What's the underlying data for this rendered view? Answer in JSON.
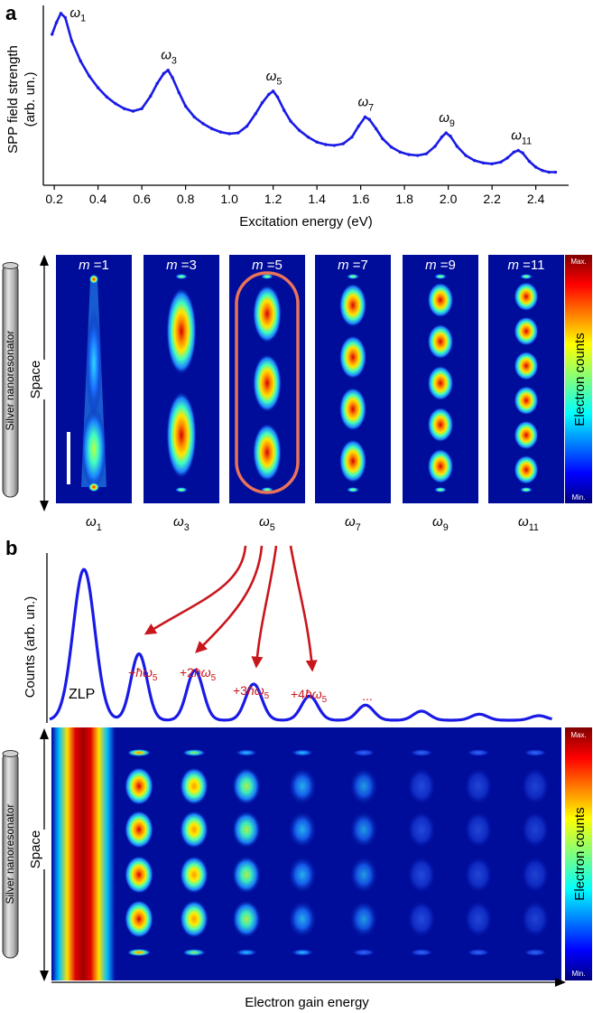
{
  "panel_a_label": "a",
  "panel_b_label": "b",
  "chart_data": [
    {
      "type": "line",
      "ylabel_line1": "SPP field strength",
      "ylabel_line2": "(arb. un.)",
      "xlabel": "Excitation energy (eV)",
      "xlim": [
        0.15,
        2.55
      ],
      "xticks": [
        "0.2",
        "0.4",
        "0.6",
        "0.8",
        "1.0",
        "1.2",
        "1.4",
        "1.6",
        "1.8",
        "2.0",
        "2.2",
        "2.4"
      ],
      "color": "#1a1ae6",
      "x": [
        0.19,
        0.21,
        0.23,
        0.25,
        0.28,
        0.32,
        0.36,
        0.4,
        0.44,
        0.48,
        0.52,
        0.56,
        0.6,
        0.64,
        0.67,
        0.7,
        0.72,
        0.74,
        0.77,
        0.8,
        0.84,
        0.88,
        0.92,
        0.96,
        1.0,
        1.04,
        1.08,
        1.12,
        1.15,
        1.18,
        1.2,
        1.22,
        1.25,
        1.28,
        1.32,
        1.36,
        1.4,
        1.44,
        1.48,
        1.52,
        1.56,
        1.59,
        1.62,
        1.64,
        1.67,
        1.7,
        1.74,
        1.78,
        1.82,
        1.86,
        1.9,
        1.94,
        1.97,
        1.99,
        2.01,
        2.04,
        2.08,
        2.12,
        2.16,
        2.2,
        2.24,
        2.27,
        2.3,
        2.32,
        2.34,
        2.37,
        2.4,
        2.43,
        2.46,
        2.49
      ],
      "y": [
        0.86,
        0.93,
        0.985,
        0.96,
        0.82,
        0.7,
        0.61,
        0.54,
        0.485,
        0.445,
        0.415,
        0.4,
        0.415,
        0.49,
        0.565,
        0.625,
        0.645,
        0.6,
        0.51,
        0.43,
        0.365,
        0.325,
        0.295,
        0.275,
        0.265,
        0.27,
        0.31,
        0.385,
        0.45,
        0.5,
        0.52,
        0.485,
        0.405,
        0.34,
        0.285,
        0.245,
        0.215,
        0.2,
        0.195,
        0.205,
        0.245,
        0.31,
        0.365,
        0.35,
        0.295,
        0.235,
        0.185,
        0.155,
        0.14,
        0.135,
        0.145,
        0.19,
        0.245,
        0.27,
        0.25,
        0.19,
        0.135,
        0.105,
        0.09,
        0.085,
        0.095,
        0.12,
        0.155,
        0.165,
        0.15,
        0.1,
        0.065,
        0.045,
        0.035,
        0.035
      ],
      "peaks": [
        {
          "base": "ω",
          "sub": "1",
          "x": 0.23,
          "y": 0.985
        },
        {
          "base": "ω",
          "sub": "3",
          "x": 0.72,
          "y": 0.645
        },
        {
          "base": "ω",
          "sub": "5",
          "x": 1.2,
          "y": 0.52
        },
        {
          "base": "ω",
          "sub": "7",
          "x": 1.62,
          "y": 0.365
        },
        {
          "base": "ω",
          "sub": "9",
          "x": 1.99,
          "y": 0.27
        },
        {
          "base": "ω",
          "sub": "11",
          "x": 2.32,
          "y": 0.165
        }
      ]
    },
    {
      "type": "heatmap",
      "space_label": "Space",
      "nanoresonator_label": "Silver nanoresonator",
      "colorbar_label": "Electron counts",
      "colorbar_max": "Max.",
      "colorbar_min": "Min.",
      "panels": [
        {
          "m_label": "m",
          "m_value": "=1",
          "freq_base": "ω",
          "freq_sub": "1",
          "order": 1
        },
        {
          "m_label": "m",
          "m_value": "=3",
          "freq_base": "ω",
          "freq_sub": "3",
          "order": 3
        },
        {
          "m_label": "m",
          "m_value": "=5",
          "freq_base": "ω",
          "freq_sub": "5",
          "order": 5,
          "highlighted": true
        },
        {
          "m_label": "m",
          "m_value": "=7",
          "freq_base": "ω",
          "freq_sub": "7",
          "order": 7
        },
        {
          "m_label": "m",
          "m_value": "=9",
          "freq_base": "ω",
          "freq_sub": "9",
          "order": 9
        },
        {
          "m_label": "m",
          "m_value": "=11",
          "freq_base": "ω",
          "freq_sub": "11",
          "order": 11
        }
      ]
    },
    {
      "type": "line",
      "ylabel": "Counts (arb. un.)",
      "color": "#1a1ae6",
      "zlp_label": "ZLP",
      "gain_peaks": [
        {
          "prefix": "+",
          "n": "",
          "hbar": "ħ",
          "base": "ω",
          "sub": "5",
          "height": 0.44
        },
        {
          "prefix": "+",
          "n": "2",
          "hbar": "ħ",
          "base": "ω",
          "sub": "5",
          "height": 0.33
        },
        {
          "prefix": "+",
          "n": "3",
          "hbar": "ħ",
          "base": "ω",
          "sub": "5",
          "height": 0.24
        },
        {
          "prefix": "+",
          "n": "4",
          "hbar": "ħ",
          "base": "ω",
          "sub": "5",
          "height": 0.16
        }
      ],
      "ellipsis": "...",
      "peak_heights": [
        1.0,
        0.44,
        0.33,
        0.24,
        0.16,
        0.1,
        0.06,
        0.04,
        0.03
      ],
      "arrow_color": "#c8161d"
    },
    {
      "type": "heatmap",
      "space_label": "Space",
      "nanoresonator_label": "Silver nanoresonator",
      "xlabel": "Electron gain energy",
      "colorbar_label": "Electron counts",
      "colorbar_max": "Max.",
      "colorbar_min": "Min.",
      "column_intensities": [
        0.72,
        0.55,
        0.42,
        0.3,
        0.2,
        0.12,
        0.08,
        0.05
      ],
      "rows": 6
    }
  ]
}
